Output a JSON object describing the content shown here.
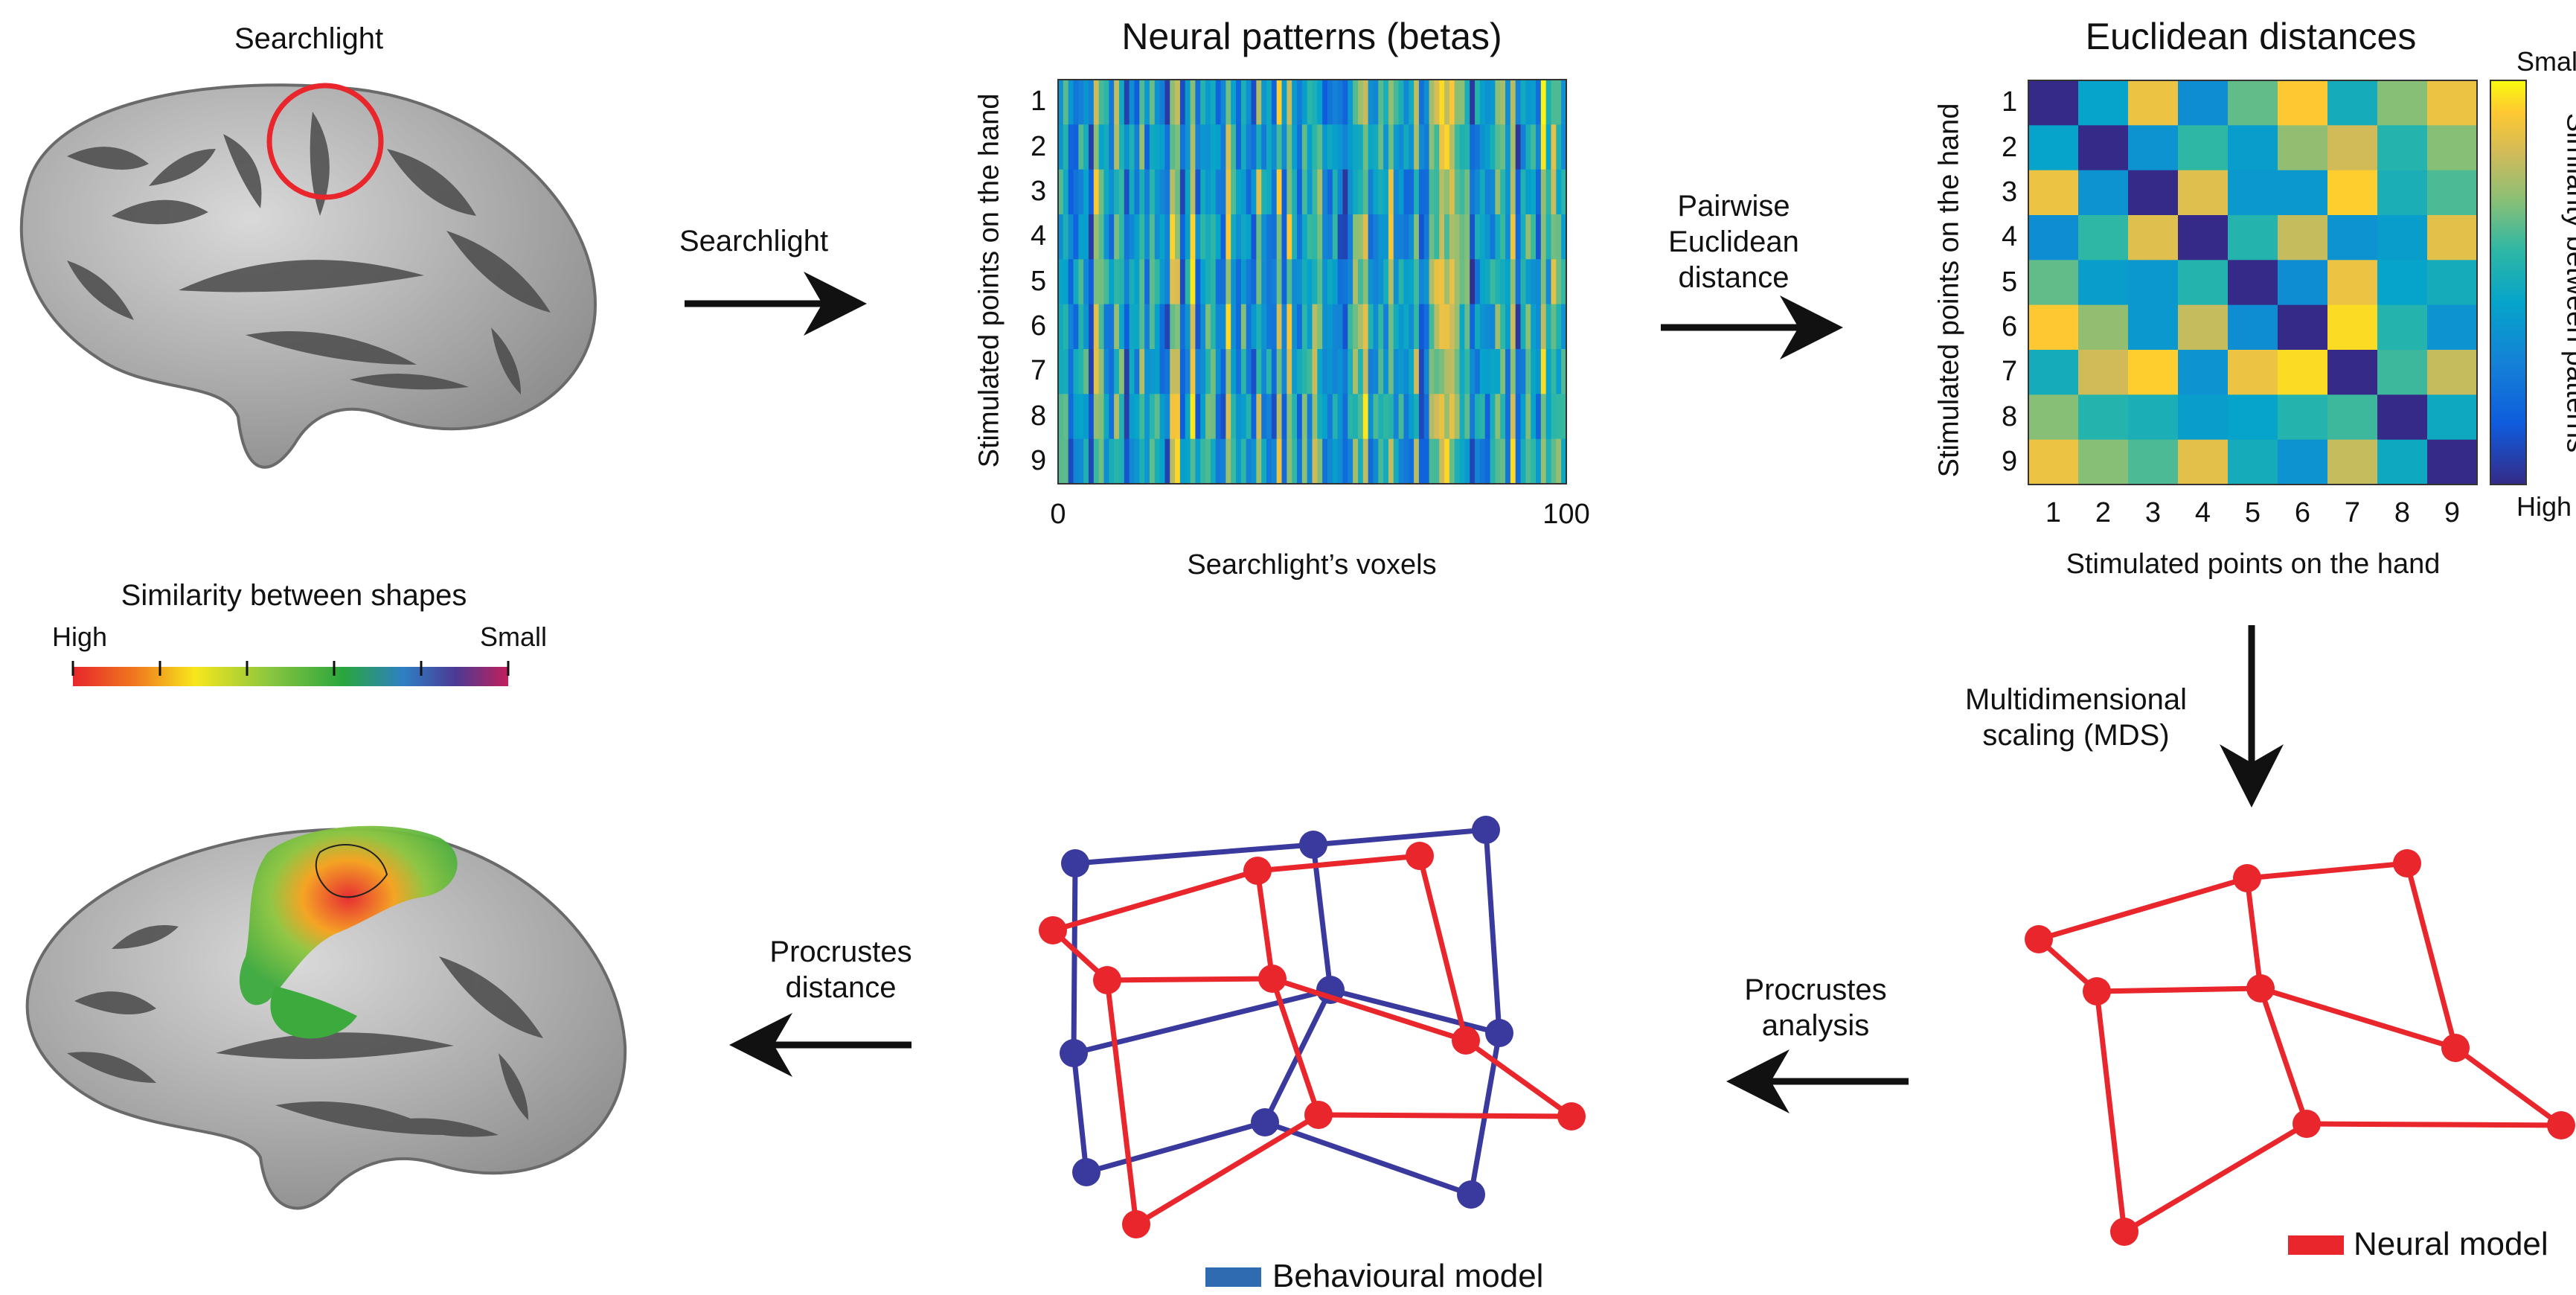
{
  "brains": {
    "top_label": "Searchlight",
    "similarity_title": "Similarity between shapes",
    "scale_high": "High",
    "scale_small": "Small",
    "scale_colors": [
      "#e8262b",
      "#f07d1e",
      "#f7e71c",
      "#8cc63f",
      "#2aa63d",
      "#2e7fc4",
      "#4b3a93",
      "#c21f5a"
    ]
  },
  "arrows": {
    "searchlight": "Searchlight",
    "pairwise_l1": "Pairwise",
    "pairwise_l2": "Euclidean",
    "pairwise_l3": "distance",
    "mds_l1": "Multidimensional",
    "mds_l2": "scaling (MDS)",
    "procrustes_analysis_l1": "Procrustes",
    "procrustes_analysis_l2": "analysis",
    "procrustes_distance_l1": "Procrustes",
    "procrustes_distance_l2": "distance"
  },
  "chart_data": [
    {
      "type": "heatmap",
      "title": "Neural patterns (betas)",
      "ylabel": "Stimulated points on the hand",
      "xlabel": "Searchlight’s voxels",
      "y_ticks": [
        "1",
        "2",
        "3",
        "4",
        "5",
        "6",
        "7",
        "8",
        "9"
      ],
      "x_ticks": [
        "0",
        "100"
      ],
      "colormap": "parula",
      "values_note": ""
    },
    {
      "type": "heatmap",
      "title": "Euclidean distances",
      "ylabel": "Stimulated points on the hand",
      "xlabel": "Stimulated points on the hand",
      "categories": [
        "1",
        "2",
        "3",
        "4",
        "5",
        "6",
        "7",
        "8",
        "9"
      ],
      "colorbar_label": "Similarity between patterns",
      "colorbar_top": "Small",
      "colorbar_bottom": "High",
      "values": [
        [
          0.0,
          0.45,
          0.88,
          0.35,
          0.65,
          0.92,
          0.5,
          0.7,
          0.88
        ],
        [
          0.45,
          0.0,
          0.38,
          0.58,
          0.42,
          0.72,
          0.82,
          0.55,
          0.7
        ],
        [
          0.88,
          0.38,
          0.0,
          0.85,
          0.4,
          0.4,
          0.93,
          0.52,
          0.62
        ],
        [
          0.35,
          0.58,
          0.85,
          0.0,
          0.55,
          0.8,
          0.38,
          0.42,
          0.86
        ],
        [
          0.65,
          0.42,
          0.4,
          0.55,
          0.0,
          0.35,
          0.88,
          0.45,
          0.5
        ],
        [
          0.92,
          0.72,
          0.4,
          0.8,
          0.35,
          0.0,
          0.95,
          0.55,
          0.38
        ],
        [
          0.5,
          0.82,
          0.93,
          0.38,
          0.88,
          0.95,
          0.0,
          0.6,
          0.8
        ],
        [
          0.7,
          0.55,
          0.52,
          0.42,
          0.45,
          0.55,
          0.6,
          0.0,
          0.48
        ],
        [
          0.88,
          0.7,
          0.62,
          0.86,
          0.5,
          0.38,
          0.8,
          0.48,
          0.0
        ]
      ]
    }
  ],
  "models": {
    "neural": "Neural model",
    "behavioural": "Behavioural model",
    "neural_color": "#e8262b",
    "behavioural_color": "#3a3a9e",
    "legend_behavioural_color": "#2e6bb0"
  }
}
